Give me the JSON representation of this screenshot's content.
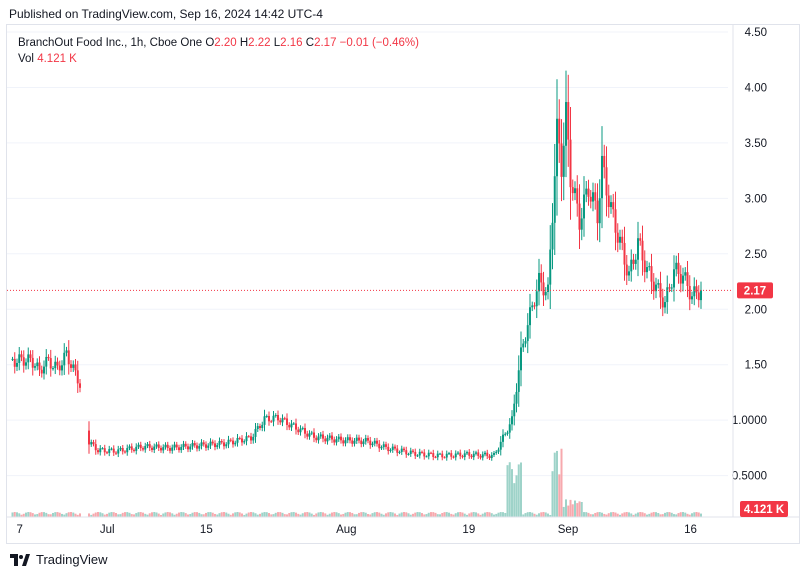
{
  "header": {
    "published": "Published on TradingView.com, Sep 16, 2024 14:42 UTC-4"
  },
  "legend": {
    "symbol": "BranchOut Food Inc., 1h, Cboe One",
    "o_label": "O",
    "o_value": "2.20",
    "h_label": "H",
    "h_value": "2.22",
    "l_label": "L",
    "l_value": "2.16",
    "c_label": "C",
    "c_value": "2.17",
    "change": "−0.01 (−0.46%)",
    "vol_label": "Vol",
    "vol_value": "4.121 K"
  },
  "footer": {
    "brand": "TradingView"
  },
  "colors": {
    "up": "#089981",
    "down": "#f23645",
    "up_vol": "#9ed3c9",
    "down_vol": "#f7a9ae",
    "grid": "#f0f3fa"
  },
  "chart_data": {
    "type": "candlestick",
    "title": "BranchOut Food Inc., 1h, Cboe One",
    "y_axis_ticks": [
      "4.50",
      "4.00",
      "3.50",
      "3.00",
      "2.50",
      "2.00",
      "1.50",
      "1.0000",
      "0.5000"
    ],
    "y_axis_values": [
      4.5,
      4.0,
      3.5,
      3.0,
      2.5,
      2.0,
      1.5,
      1.0,
      0.5
    ],
    "x_axis_ticks": [
      "7",
      "Jul",
      "15",
      "Aug",
      "19",
      "Sep",
      "16"
    ],
    "ylim": [
      0.28,
      4.5
    ],
    "grid": true,
    "last_price_label": "2.17",
    "last_volume_label": "4.121 K",
    "series": [
      {
        "x": 1,
        "close": 1.55
      },
      {
        "x": 2,
        "close": 1.52
      },
      {
        "x": 3,
        "close": 1.56
      },
      {
        "x": 4,
        "close": 1.53
      },
      {
        "x": 5,
        "close": 1.55
      },
      {
        "x": 6,
        "close": 1.5
      },
      {
        "x": 7,
        "close": 1.44
      },
      {
        "x": 8,
        "close": 1.5
      },
      {
        "x": 9,
        "close": 1.54
      },
      {
        "x": 10,
        "close": 1.49
      },
      {
        "x": 11,
        "close": 1.47
      },
      {
        "x": 12,
        "close": 1.52
      },
      {
        "x": 13,
        "close": 1.6
      },
      {
        "x": 14,
        "close": 1.5
      },
      {
        "x": 15,
        "close": 1.42
      },
      {
        "x": 16,
        "close": 1.32
      },
      {
        "x": 18,
        "close": 0.8
      },
      {
        "x": 20,
        "close": 0.73
      },
      {
        "x": 24,
        "close": 0.72
      },
      {
        "x": 30,
        "close": 0.76
      },
      {
        "x": 36,
        "close": 0.75
      },
      {
        "x": 42,
        "close": 0.77
      },
      {
        "x": 48,
        "close": 0.79
      },
      {
        "x": 54,
        "close": 0.84
      },
      {
        "x": 57,
        "close": 1.01
      },
      {
        "x": 60,
        "close": 1.02
      },
      {
        "x": 64,
        "close": 0.93
      },
      {
        "x": 68,
        "close": 0.85
      },
      {
        "x": 74,
        "close": 0.82
      },
      {
        "x": 80,
        "close": 0.81
      },
      {
        "x": 84,
        "close": 0.75
      },
      {
        "x": 90,
        "close": 0.7
      },
      {
        "x": 96,
        "close": 0.68
      },
      {
        "x": 102,
        "close": 0.69
      },
      {
        "x": 108,
        "close": 0.68
      },
      {
        "x": 112,
        "close": 1.0
      },
      {
        "x": 114,
        "close": 1.6
      },
      {
        "x": 116,
        "close": 1.95
      },
      {
        "x": 118,
        "close": 2.25
      },
      {
        "x": 120,
        "close": 2.15
      },
      {
        "x": 122,
        "close": 3.6
      },
      {
        "x": 123,
        "close": 3.3
      },
      {
        "x": 124,
        "close": 3.75
      },
      {
        "x": 125,
        "close": 3.2
      },
      {
        "x": 127,
        "close": 2.8
      },
      {
        "x": 129,
        "close": 3.1
      },
      {
        "x": 131,
        "close": 2.85
      },
      {
        "x": 132,
        "close": 3.3
      },
      {
        "x": 134,
        "close": 2.9
      },
      {
        "x": 136,
        "close": 2.6
      },
      {
        "x": 138,
        "close": 2.3
      },
      {
        "x": 140,
        "close": 2.6
      },
      {
        "x": 142,
        "close": 2.35
      },
      {
        "x": 144,
        "close": 2.2
      },
      {
        "x": 146,
        "close": 2.05
      },
      {
        "x": 148,
        "close": 2.35
      },
      {
        "x": 150,
        "close": 2.3
      },
      {
        "x": 152,
        "close": 2.12
      },
      {
        "x": 154,
        "close": 2.17
      }
    ]
  }
}
